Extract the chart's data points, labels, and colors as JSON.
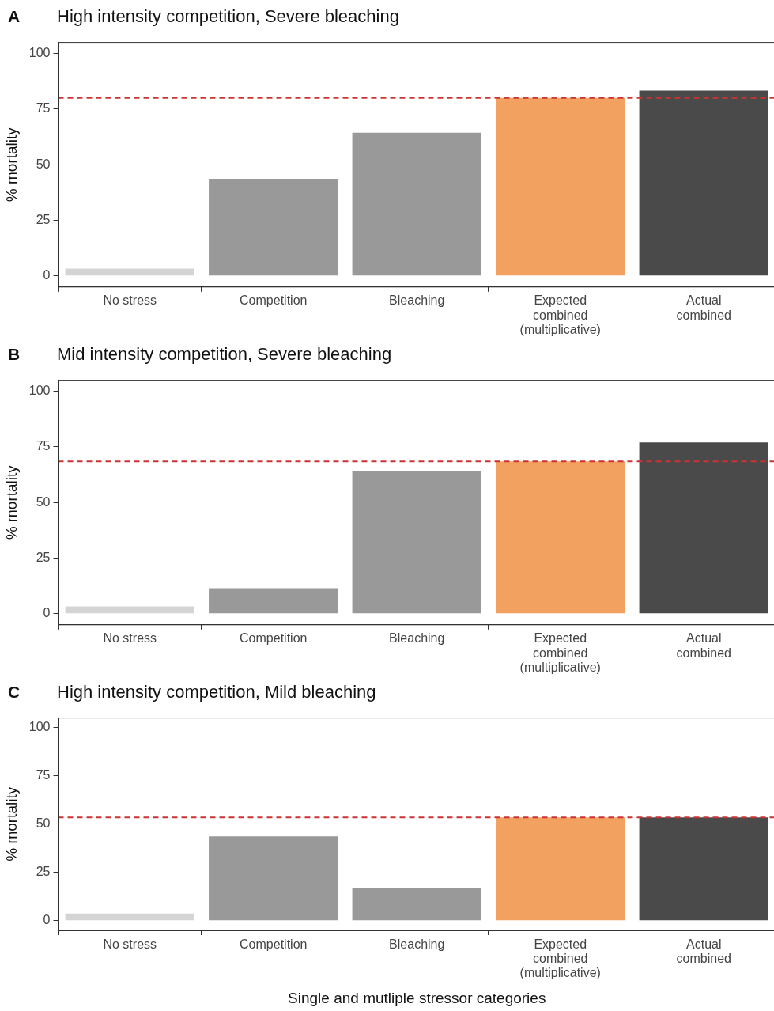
{
  "chart_data": [
    {
      "type": "bar",
      "title": "High intensity competition, Severe bleaching",
      "annotations": [
        "A"
      ],
      "ylabel": "% mortality",
      "categories": [
        "No stress",
        "Competition",
        "Bleaching",
        "Expected\ncombined\n(multiplicative)",
        "Actual\ncombined"
      ],
      "values": [
        3.3,
        43.7,
        64.4,
        80,
        83.3
      ],
      "colors": [
        "#d4d4d4",
        "#999999",
        "#999999",
        "#f2a160",
        "#4a4a4a"
      ],
      "ylim": [
        -5,
        105
      ],
      "yticks": [
        0,
        25,
        50,
        75,
        100
      ],
      "grid": false,
      "legend": false,
      "ref_lines": [
        {
          "axis": "y",
          "value": 80,
          "color": "#cc3333",
          "line_style": "dashed"
        }
      ]
    },
    {
      "type": "bar",
      "title": "Mid intensity competition, Severe bleaching",
      "annotations": [
        "B"
      ],
      "ylabel": "% mortality",
      "categories": [
        "No stress",
        "Competition",
        "Bleaching",
        "Expected\ncombined\n(multiplicative)",
        "Actual\ncombined"
      ],
      "values": [
        3.3,
        11.5,
        64.2,
        68.5,
        77
      ],
      "colors": [
        "#d4d4d4",
        "#999999",
        "#999999",
        "#f2a160",
        "#4a4a4a"
      ],
      "ylim": [
        -5,
        105
      ],
      "yticks": [
        0,
        25,
        50,
        75,
        100
      ],
      "grid": false,
      "legend": false,
      "ref_lines": [
        {
          "axis": "y",
          "value": 68.5,
          "color": "#cc3333",
          "line_style": "dashed"
        }
      ]
    },
    {
      "type": "bar",
      "title": "High intensity competition, Mild bleaching",
      "annotations": [
        "C"
      ],
      "ylabel": "% mortality",
      "xlabel": "Single and mutliple stressor categories",
      "categories": [
        "No stress",
        "Competition",
        "Bleaching",
        "Expected\ncombined\n(multiplicative)",
        "Actual\ncombined"
      ],
      "values": [
        3.7,
        43.7,
        17,
        53.5,
        53.5
      ],
      "colors": [
        "#d4d4d4",
        "#999999",
        "#999999",
        "#f2a160",
        "#4a4a4a"
      ],
      "ylim": [
        -5,
        105
      ],
      "yticks": [
        0,
        25,
        50,
        75,
        100
      ],
      "grid": false,
      "legend": false,
      "ref_lines": [
        {
          "axis": "y",
          "value": 53.5,
          "color": "#cc3333",
          "line_style": "dashed"
        }
      ]
    }
  ]
}
